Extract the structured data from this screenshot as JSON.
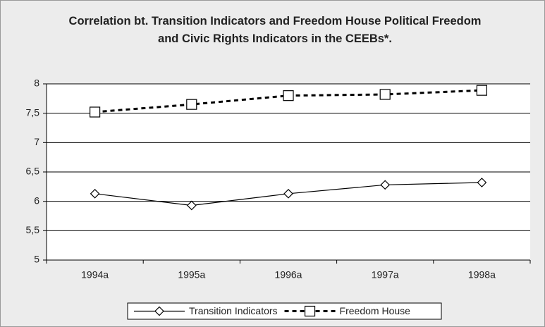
{
  "chart_data": {
    "type": "line",
    "title": "Correlation bt. Transition Indicators and Freedom House Political Freedom and Civic Rights Indicators in the CEEBs*.",
    "categories": [
      "1994a",
      "1995a",
      "1996a",
      "1997a",
      "1998a"
    ],
    "series": [
      {
        "name": "Transition Indicators",
        "color": "#000000",
        "marker": "diamond",
        "dash": "solid",
        "values": [
          6.13,
          5.93,
          6.13,
          6.28,
          6.32
        ]
      },
      {
        "name": "Freedom House",
        "color": "#000000",
        "marker": "square",
        "dash": "dashed",
        "values": [
          7.52,
          7.65,
          7.8,
          7.82,
          7.89
        ]
      }
    ],
    "ylim": [
      5,
      8
    ],
    "yticks": [
      5,
      {
        "value": 5.5,
        "label": "5,5"
      },
      6,
      {
        "value": 6.5,
        "label": "6,5"
      },
      7,
      {
        "value": 7.5,
        "label": "7,5"
      },
      8
    ],
    "grid": true,
    "legend": "bottom"
  }
}
